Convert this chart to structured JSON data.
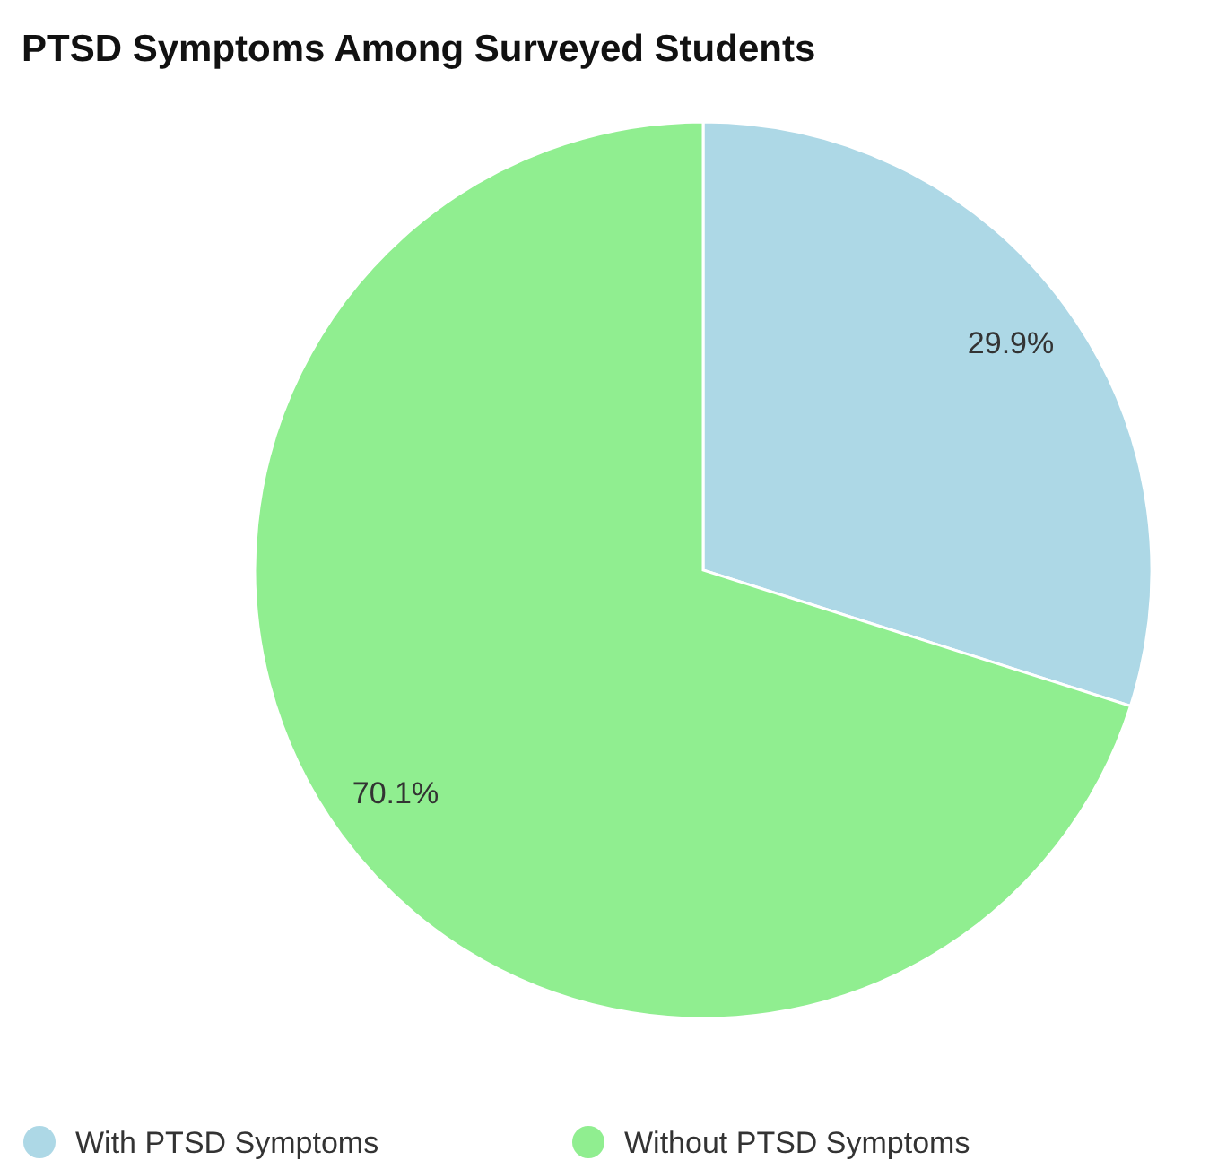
{
  "chart_data": {
    "type": "pie",
    "title": "PTSD Symptoms Among Surveyed Students",
    "categories": [
      "With PTSD Symptoms",
      "Without PTSD Symptoms"
    ],
    "values": [
      29.9,
      70.1
    ],
    "colors": [
      "#add8e6",
      "#90ee90"
    ],
    "value_labels": [
      "29.9%",
      "70.1%"
    ],
    "legend": "bottom"
  }
}
